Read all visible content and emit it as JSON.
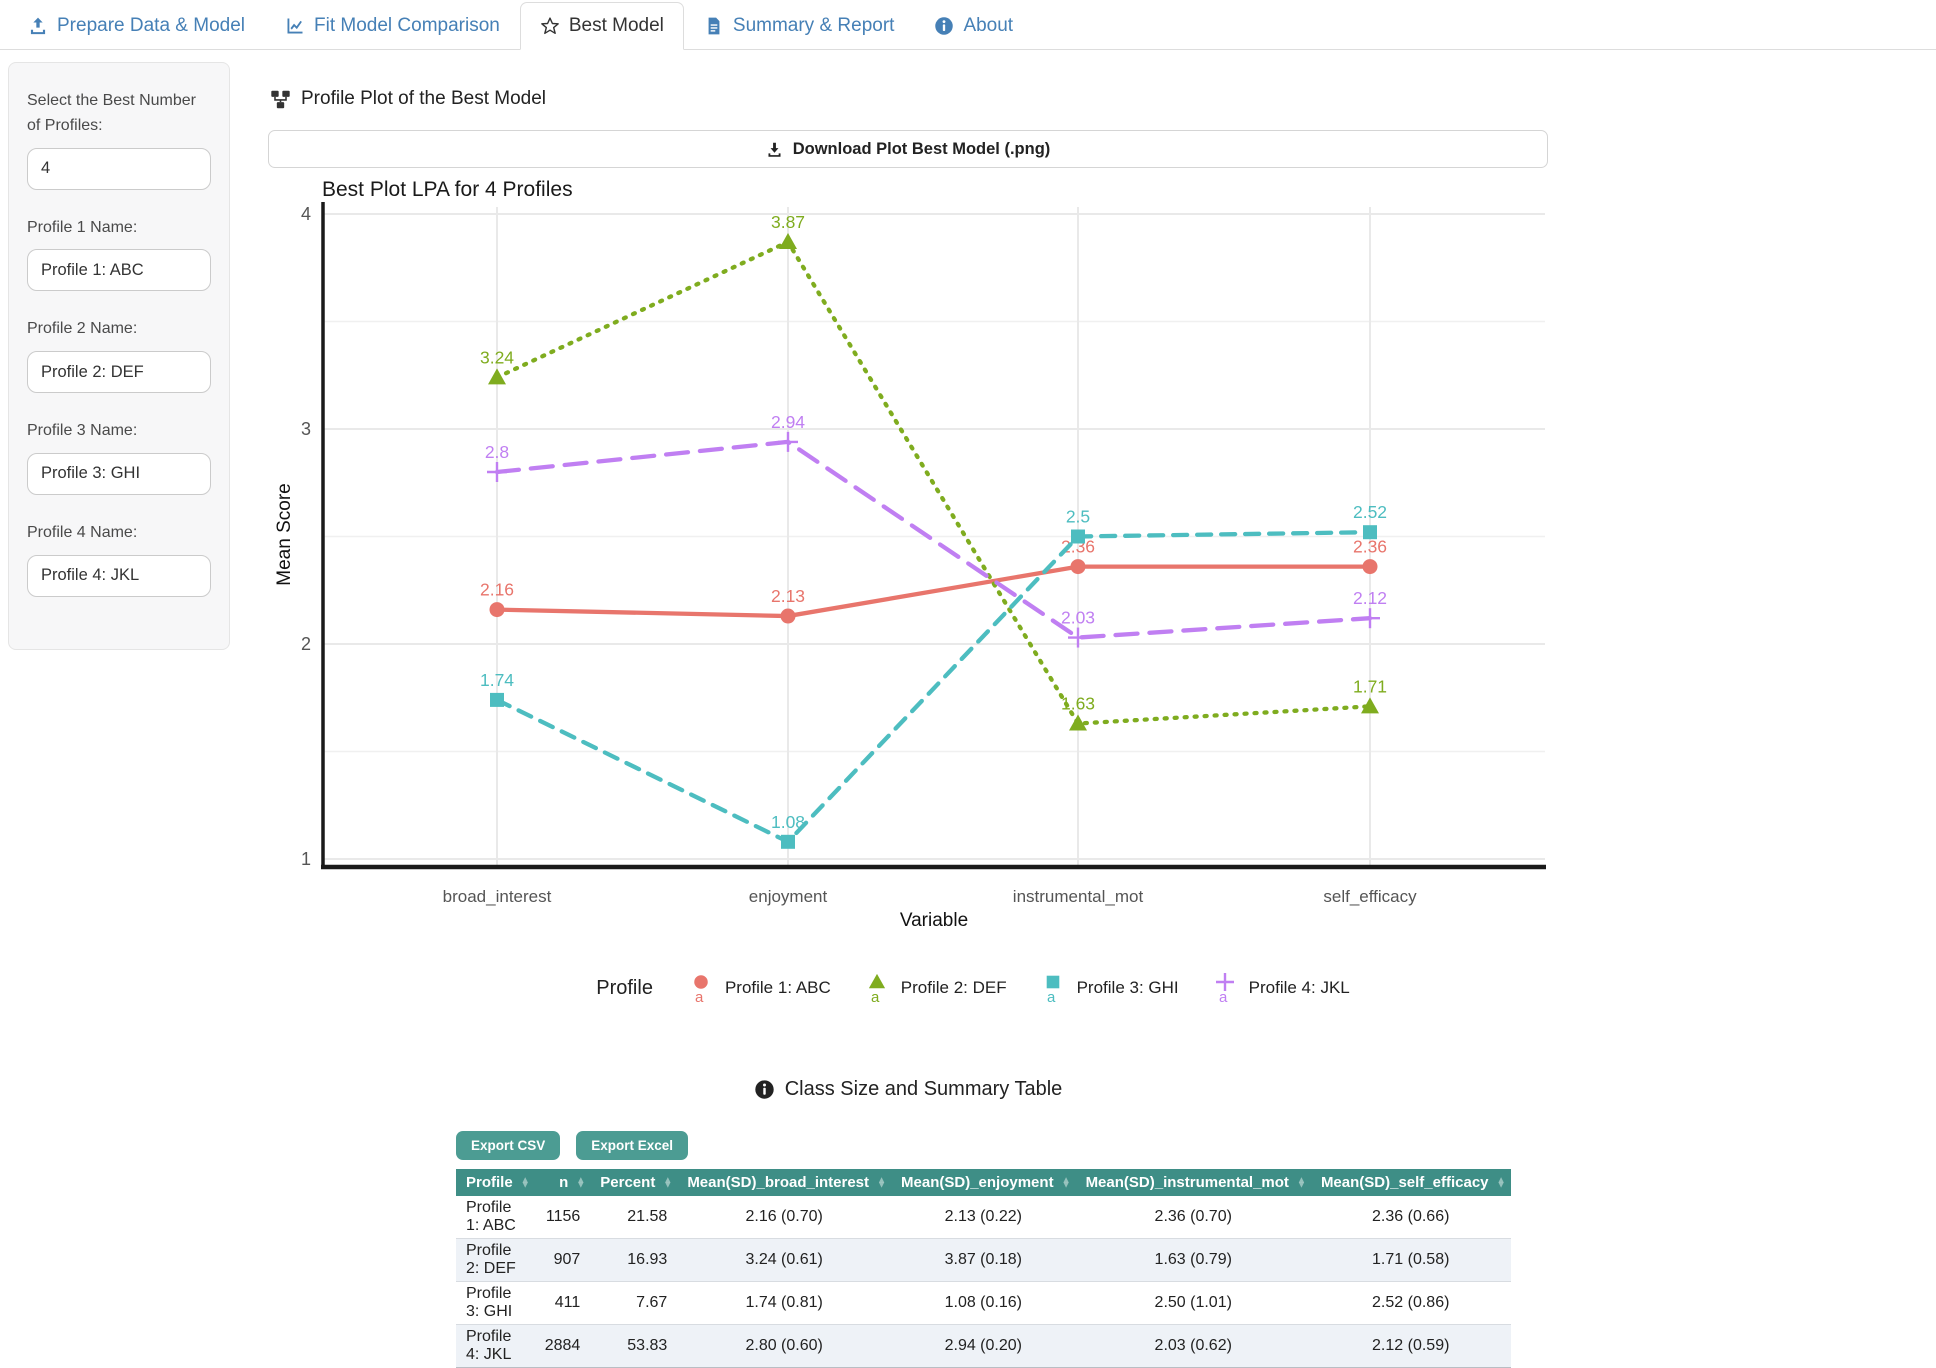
{
  "tabs": [
    {
      "label": "Prepare Data & Model",
      "icon": "upload",
      "active": false
    },
    {
      "label": "Fit Model Comparison",
      "icon": "chart-line",
      "active": false
    },
    {
      "label": "Best Model",
      "icon": "star",
      "active": true
    },
    {
      "label": "Summary & Report",
      "icon": "file",
      "active": false
    },
    {
      "label": "About",
      "icon": "info-circle",
      "active": false
    }
  ],
  "sidebar": {
    "fields": [
      {
        "id": "best-profiles-input",
        "label": "Select the Best Number of Profiles:",
        "value": "4"
      },
      {
        "id": "profile-1-name-input",
        "label": "Profile 1 Name:",
        "value": "Profile 1: ABC"
      },
      {
        "id": "profile-2-name-input",
        "label": "Profile 2 Name:",
        "value": "Profile 2: DEF"
      },
      {
        "id": "profile-3-name-input",
        "label": "Profile 3 Name:",
        "value": "Profile 3: GHI"
      },
      {
        "id": "profile-4-name-input",
        "label": "Profile 4 Name:",
        "value": "Profile 4: JKL"
      }
    ]
  },
  "plot_section": {
    "title": "Profile Plot of the Best Model",
    "download_label": "Download Plot Best Model (.png)"
  },
  "chart_data": {
    "type": "line",
    "title": "Best Plot LPA for 4 Profiles",
    "xlabel": "Variable",
    "ylabel": "Mean Score",
    "categories": [
      "broad_interest",
      "enjoyment",
      "instrumental_mot",
      "self_efficacy"
    ],
    "ylim": [
      1,
      4
    ],
    "yticks": [
      1,
      2,
      3,
      4
    ],
    "grid": "on",
    "legend_title": "Profile",
    "legend_position": "bottom",
    "series": [
      {
        "name": "Profile 1: ABC",
        "color": "#e8756c",
        "marker": "circle",
        "dash": "solid",
        "values": [
          2.16,
          2.13,
          2.36,
          2.36
        ],
        "labels": [
          "2.16",
          "2.13",
          "2.36",
          "2.36"
        ]
      },
      {
        "name": "Profile 2: DEF",
        "color": "#7fac1f",
        "marker": "triangle",
        "dash": "dotted",
        "values": [
          3.24,
          3.87,
          1.63,
          1.71
        ],
        "labels": [
          "3.24",
          "3.87",
          "1.63",
          "1.71"
        ]
      },
      {
        "name": "Profile 3: GHI",
        "color": "#4dbdc0",
        "marker": "square",
        "dash": "dashed",
        "values": [
          1.74,
          1.08,
          2.5,
          2.52
        ],
        "labels": [
          "1.74",
          "1.08",
          "2.5",
          "2.52"
        ]
      },
      {
        "name": "Profile 4: JKL",
        "color": "#c07ff2",
        "marker": "plus",
        "dash": "longdash",
        "values": [
          2.8,
          2.94,
          2.03,
          2.12
        ],
        "labels": [
          "2.8",
          "2.94",
          "2.03",
          "2.12"
        ]
      }
    ]
  },
  "table_section": {
    "heading": "Class Size and Summary Table",
    "buttons": [
      "Export CSV",
      "Export Excel"
    ],
    "columns": [
      {
        "label": "Profile",
        "align": "left"
      },
      {
        "label": "n",
        "align": "right"
      },
      {
        "label": "Percent",
        "align": "right"
      },
      {
        "label": "Mean(SD)_broad_interest",
        "align": "center"
      },
      {
        "label": "Mean(SD)_enjoyment",
        "align": "center"
      },
      {
        "label": "Mean(SD)_instrumental_mot",
        "align": "center"
      },
      {
        "label": "Mean(SD)_self_efficacy",
        "align": "center"
      }
    ],
    "rows": [
      [
        "Profile 1: ABC",
        "1156",
        "21.58",
        "2.16 (0.70)",
        "2.13 (0.22)",
        "2.36 (0.70)",
        "2.36 (0.66)"
      ],
      [
        "Profile 2: DEF",
        "907",
        "16.93",
        "3.24 (0.61)",
        "3.87 (0.18)",
        "1.63 (0.79)",
        "1.71 (0.58)"
      ],
      [
        "Profile 3: GHI",
        "411",
        "7.67",
        "1.74 (0.81)",
        "1.08 (0.16)",
        "2.50 (1.01)",
        "2.52 (0.86)"
      ],
      [
        "Profile 4: JKL",
        "2884",
        "53.83",
        "2.80 (0.60)",
        "2.94 (0.20)",
        "2.03 (0.62)",
        "2.12 (0.59)"
      ]
    ]
  },
  "colors": {
    "tab_blue": "#4680b6",
    "table_header": "#3e8e86",
    "export_button": "#4c9c93",
    "row_alt": "#eef2f7",
    "grid": "#e9e9e9",
    "axis": "#1a1a1a"
  }
}
